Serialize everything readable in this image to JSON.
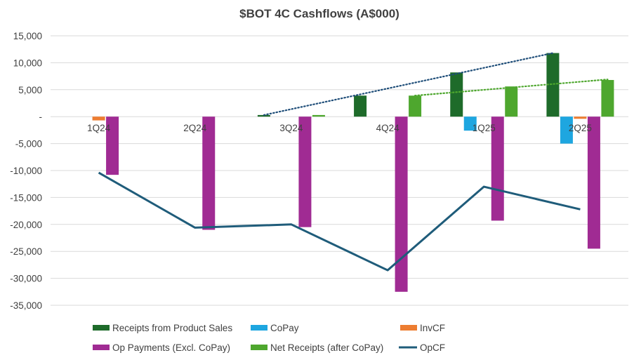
{
  "chart_data": {
    "type": "bar",
    "title": "$BOT 4C Cashflows (A$000)",
    "categories": [
      "1Q24",
      "2Q24",
      "3Q24",
      "4Q24",
      "1Q25",
      "2Q25"
    ],
    "ylim": [
      -35000,
      15000
    ],
    "yticks": [
      15000,
      10000,
      5000,
      0,
      -5000,
      -10000,
      -15000,
      -20000,
      -25000,
      -30000,
      -35000
    ],
    "ytick_labels": [
      "15,000",
      "10,000",
      "5,000",
      "-",
      "-5,000",
      "-10,000",
      "-15,000",
      "-20,000",
      "-25,000",
      "-30,000",
      "-35,000"
    ],
    "grid": true,
    "legend_position": "bottom",
    "series": [
      {
        "name": "Receipts from Product Sales",
        "kind": "bar",
        "color": "#1e6b2a",
        "values": [
          0,
          0,
          300,
          3900,
          8200,
          11800
        ]
      },
      {
        "name": "CoPay",
        "kind": "bar",
        "color": "#1ea6e0",
        "values": [
          0,
          0,
          0,
          0,
          -2600,
          -5000
        ]
      },
      {
        "name": "InvCF",
        "kind": "bar",
        "color": "#ed7d31",
        "values": [
          -700,
          0,
          0,
          0,
          0,
          -400
        ]
      },
      {
        "name": "Op Payments (Excl. CoPay)",
        "kind": "bar",
        "color": "#a02b93",
        "values": [
          -10800,
          -21000,
          -20500,
          -32500,
          -19300,
          -24500
        ]
      },
      {
        "name": "Net Receipts (after CoPay)",
        "kind": "bar",
        "color": "#4ea72e",
        "values": [
          0,
          0,
          300,
          3900,
          5600,
          6800
        ]
      },
      {
        "name": "OpCF",
        "kind": "line",
        "color": "#1f5c7a",
        "values": [
          -10400,
          -20600,
          -20000,
          -28500,
          -13000,
          -17200
        ]
      }
    ],
    "trendlines": [
      {
        "of": "Receipts from Product Sales",
        "color": "#1f4e79",
        "from": {
          "category": "3Q24",
          "value": 300
        },
        "to": {
          "category": "2Q25",
          "value": 11800
        }
      },
      {
        "of": "Net Receipts (after CoPay)",
        "color": "#4ea72e",
        "from": {
          "category": "4Q24",
          "value": 3900
        },
        "to": {
          "category": "2Q25",
          "value": 6900
        }
      }
    ]
  }
}
